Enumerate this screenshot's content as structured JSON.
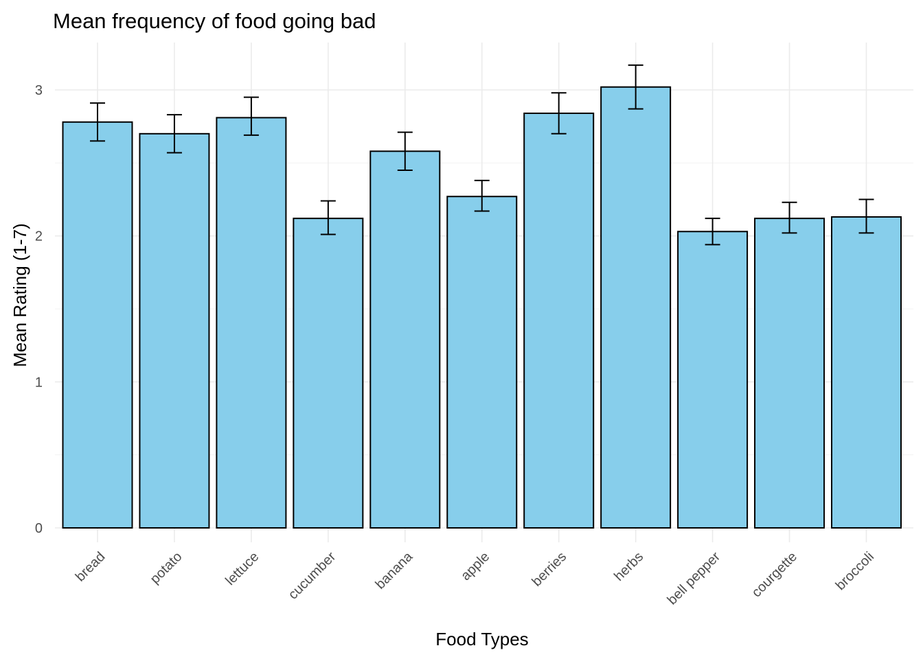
{
  "chart_data": {
    "type": "bar",
    "title": "Mean frequency of food going bad",
    "xlabel": "Food Types",
    "ylabel": "Mean Rating (1-7)",
    "categories": [
      "bread",
      "potato",
      "lettuce",
      "cucumber",
      "banana",
      "apple",
      "berries",
      "herbs",
      "bell pepper",
      "courgette",
      "broccoli"
    ],
    "values": [
      2.78,
      2.7,
      2.81,
      2.12,
      2.58,
      2.27,
      2.84,
      3.02,
      2.03,
      2.12,
      2.13
    ],
    "error_low": [
      2.65,
      2.57,
      2.69,
      2.01,
      2.45,
      2.17,
      2.7,
      2.87,
      1.94,
      2.02,
      2.02
    ],
    "error_high": [
      2.91,
      2.83,
      2.95,
      2.24,
      2.71,
      2.38,
      2.98,
      3.17,
      2.12,
      2.23,
      2.25
    ],
    "ylim": [
      0,
      3.2
    ],
    "yticks": [
      0,
      1,
      2,
      3
    ],
    "grid": true,
    "bar_color": "#87CEEB",
    "bar_outline": "#000000"
  }
}
